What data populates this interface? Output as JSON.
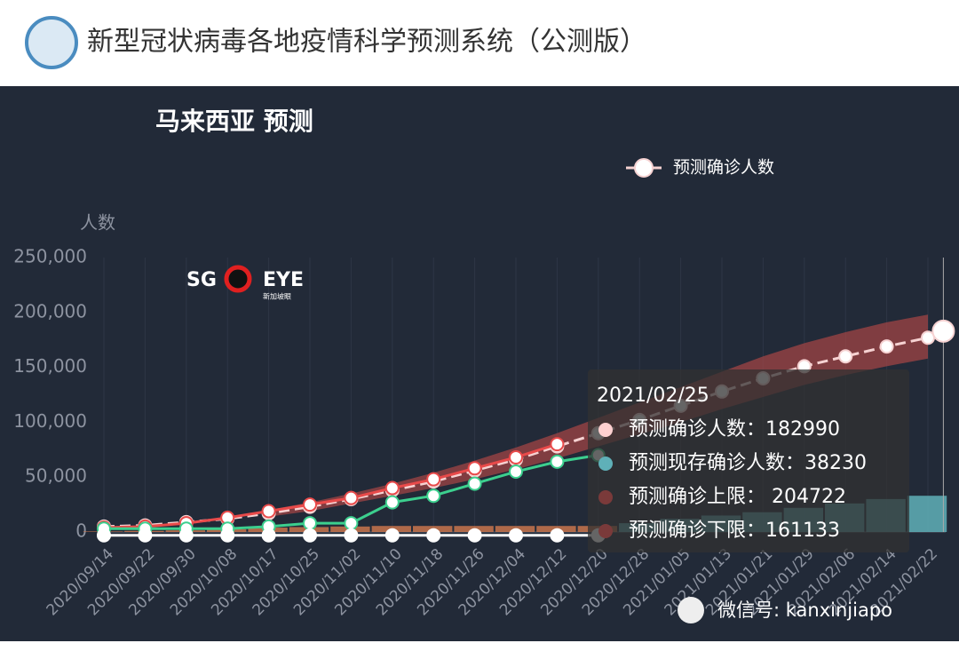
{
  "header": {
    "title": "新型冠状病毒各地疫情科学预测系统（公测版）"
  },
  "watermark": {
    "logo_left": "SG",
    "logo_right": "EYE",
    "logo_sub": "新加坡眼",
    "wechat": "微信号: kanxinjiapo"
  },
  "chart_data": {
    "type": "line",
    "title": "马来西亚 预测",
    "y_label": "人数",
    "categories": [
      "2020/09/14",
      "2020/09/22",
      "2020/09/30",
      "2020/10/08",
      "2020/10/17",
      "2020/10/25",
      "2020/11/02",
      "2020/11/10",
      "2020/11/18",
      "2020/11/26",
      "2020/12/04",
      "2020/12/12",
      "2020/12/20",
      "2020/12/28",
      "2021/01/05",
      "2021/01/13",
      "2021/01/21",
      "2021/01/29",
      "2021/02/06",
      "2021/02/14",
      "2021/02/22"
    ],
    "ylim": [
      0,
      250000
    ],
    "yticks": [
      {
        "value": 0,
        "label": "0"
      },
      {
        "value": 50000,
        "label": "50,000"
      },
      {
        "value": 100000,
        "label": "100,000"
      },
      {
        "value": 150000,
        "label": "150,000"
      },
      {
        "value": 200000,
        "label": "200,000"
      },
      {
        "value": 250000,
        "label": "250,000"
      }
    ],
    "grid": true,
    "legend": "top-right",
    "series": [
      {
        "name": "预测确诊人数",
        "color": "#f6d2d2",
        "values": [
          5000,
          6000,
          9000,
          12000,
          17000,
          23000,
          30000,
          38000,
          46000,
          56000,
          66000,
          78000,
          90000,
          102000,
          115000,
          128000,
          140000,
          151000,
          160000,
          169000,
          177000
        ]
      },
      {
        "color": "#e84a4a",
        "values": [
          4000,
          5000,
          8000,
          13000,
          19000,
          25000,
          31000,
          40000,
          48000,
          58000,
          68000,
          80000,
          null,
          null,
          null,
          null,
          null,
          null,
          null,
          null,
          null
        ]
      },
      {
        "color": "#3ccf8e",
        "values": [
          3000,
          3000,
          3000,
          3000,
          5000,
          8000,
          8000,
          27000,
          33000,
          44000,
          55000,
          64000,
          70000,
          null,
          null,
          null,
          null,
          null,
          null,
          null,
          null
        ]
      },
      {
        "color": "#ffffff",
        "values": [
          -3000,
          -3000,
          -3000,
          -3000,
          -3000,
          -3000,
          -3000,
          -3000,
          -3000,
          -3000,
          -3000,
          -3000,
          -3000,
          null,
          null,
          null,
          null,
          null,
          null,
          null,
          null
        ]
      }
    ],
    "band": {
      "color": "#a84646",
      "upper": [
        null,
        null,
        null,
        null,
        20000,
        27000,
        35000,
        44000,
        54000,
        65000,
        77000,
        90000,
        104000,
        118000,
        132000,
        146000,
        160000,
        172000,
        182000,
        191000,
        198000
      ],
      "lower": [
        null,
        null,
        null,
        null,
        14000,
        19000,
        26000,
        33000,
        40000,
        48000,
        57000,
        67000,
        78000,
        89000,
        100000,
        112000,
        123000,
        134000,
        143000,
        151000,
        158000
      ]
    },
    "bars": [
      {
        "color": "#c8744c",
        "values": [
          500,
          1000,
          1500,
          2500,
          4000,
          4500,
          5000,
          5500,
          5500,
          5500,
          5500,
          5500,
          5500,
          null,
          null,
          null,
          null,
          null,
          null,
          null,
          null
        ]
      },
      {
        "color": "#5fb0b8",
        "values": [
          null,
          null,
          null,
          null,
          null,
          null,
          null,
          null,
          null,
          null,
          null,
          null,
          null,
          8000,
          12000,
          15000,
          18000,
          22000,
          26000,
          30000,
          33000
        ]
      }
    ],
    "tooltip": {
      "date": "2021/02/25",
      "items": [
        {
          "label": "预测确诊人数：",
          "value": 182990,
          "color": "#ffd0d0"
        },
        {
          "label": "预测现存确诊人数：",
          "value": 38230,
          "color": "#5fb0b8"
        },
        {
          "label": " 预测确诊上限： ",
          "value": 204722,
          "color": "#7a3a3a"
        },
        {
          "label": "预测确诊下限：",
          "value": 161133,
          "color": "#7a3a3a"
        }
      ]
    }
  }
}
